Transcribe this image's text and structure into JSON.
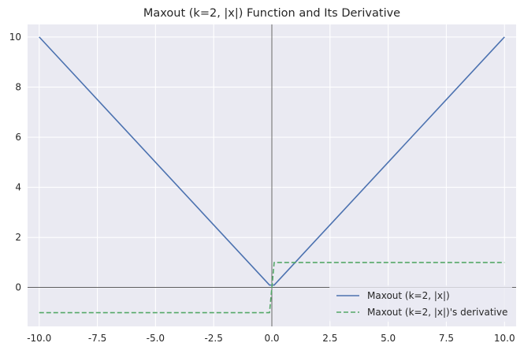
{
  "chart_data": {
    "type": "line",
    "title": "Maxout (k=2, |x|) Function and Its Derivative",
    "xlabel": "",
    "ylabel": "",
    "xlim": [
      -10.5,
      10.5
    ],
    "ylim": [
      -1.55,
      10.5
    ],
    "grid": true,
    "background": "#eaeaf2",
    "x_ticks": [
      -10.0,
      -7.5,
      -5.0,
      -2.5,
      0.0,
      2.5,
      5.0,
      7.5,
      10.0
    ],
    "x_tick_labels": [
      "-10.0",
      "-7.5",
      "-5.0",
      "-2.5",
      "0.0",
      "2.5",
      "5.0",
      "7.5",
      "10.0"
    ],
    "y_ticks": [
      0,
      2,
      4,
      6,
      8,
      10
    ],
    "y_tick_labels": [
      "0",
      "2",
      "4",
      "6",
      "8",
      "10"
    ],
    "reference_lines": {
      "x": 0,
      "y": 0,
      "color": "#000000"
    },
    "legend_position": "lower-right",
    "series": [
      {
        "name": "Maxout (k=2, |x|)",
        "color": "#4c72b0",
        "style": "solid",
        "x": [
          -10,
          -0.1,
          0,
          0.1,
          10
        ],
        "y": [
          10,
          0.1,
          0.1,
          0.1,
          10
        ]
      },
      {
        "name": "Maxout (k=2, |x|)'s derivative",
        "color": "#55a868",
        "style": "dashed",
        "x": [
          -10,
          -0.1,
          0.1,
          10
        ],
        "y": [
          -1,
          -1,
          1,
          1
        ]
      }
    ]
  }
}
